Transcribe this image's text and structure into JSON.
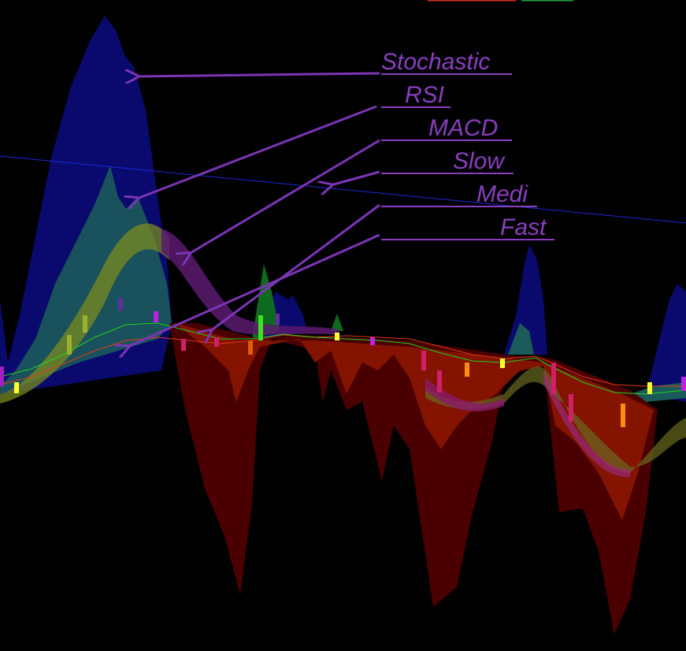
{
  "annotations": [
    {
      "label": "Stochastic"
    },
    {
      "label": "RSI"
    },
    {
      "label": "MACD"
    },
    {
      "label": "Slow"
    },
    {
      "label": "Medi"
    },
    {
      "label": "Fast"
    }
  ]
}
